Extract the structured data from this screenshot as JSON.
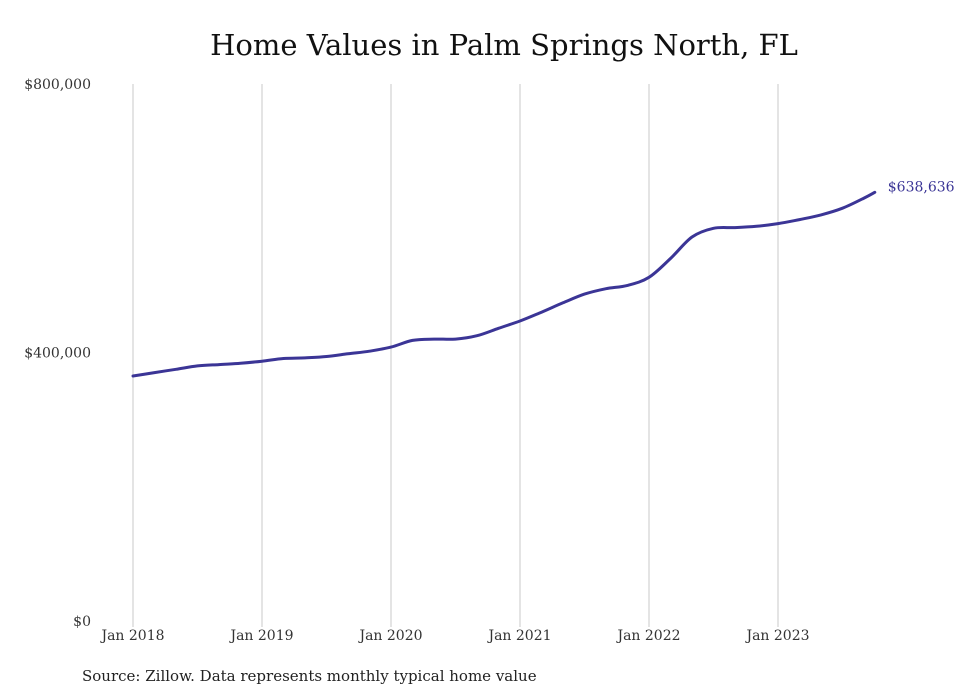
{
  "chart_data": {
    "type": "line",
    "title": "Home Values in Palm Springs North, FL",
    "xlabel": "",
    "ylabel": "",
    "x_ticks": [
      "Jan 2018",
      "Jan 2019",
      "Jan 2020",
      "Jan 2021",
      "Jan 2022",
      "Jan 2023"
    ],
    "y_ticks": [
      "$0",
      "$400,000",
      "$800,000"
    ],
    "ylim": [
      0,
      800000
    ],
    "xlim": [
      "2018-01",
      "2023-10"
    ],
    "grid": "vertical",
    "line_color": "#3b3596",
    "end_label": "$638,636",
    "series": [
      {
        "x": [
          "2018-01",
          "2018-03",
          "2018-05",
          "2018-07",
          "2018-09",
          "2018-11",
          "2019-01",
          "2019-03",
          "2019-05",
          "2019-07",
          "2019-09",
          "2019-11",
          "2020-01",
          "2020-03",
          "2020-05",
          "2020-07",
          "2020-09",
          "2020-11",
          "2021-01",
          "2021-03",
          "2021-05",
          "2021-07",
          "2021-09",
          "2021-11",
          "2022-01",
          "2022-03",
          "2022-05",
          "2022-07",
          "2022-09",
          "2022-11",
          "2023-01",
          "2023-03",
          "2023-05",
          "2023-07",
          "2023-09",
          "2023-10"
        ],
        "values": [
          365000,
          370000,
          375000,
          380000,
          382000,
          384000,
          387000,
          391000,
          392000,
          394000,
          398000,
          402000,
          408000,
          418000,
          420000,
          420000,
          425000,
          436000,
          447000,
          460000,
          474000,
          487000,
          495000,
          500000,
          512000,
          540000,
          572000,
          585000,
          586000,
          588000,
          592000,
          598000,
          605000,
          615000,
          630000,
          638636
        ]
      }
    ]
  },
  "footer": {
    "source": "Source: Zillow. Data represents monthly typical home value"
  }
}
